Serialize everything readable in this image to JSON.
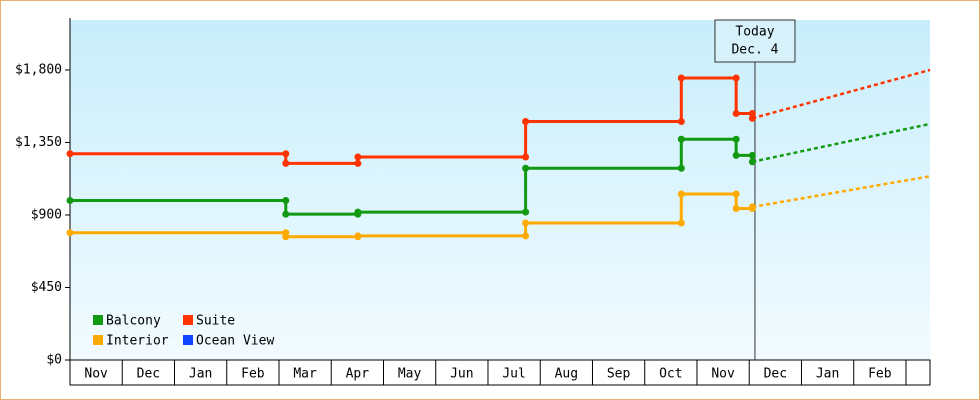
{
  "chart_data": {
    "type": "step-line",
    "categories": [
      "Nov",
      "Dec",
      "Jan",
      "Feb",
      "Mar",
      "Apr",
      "May",
      "Jun",
      "Jul",
      "Aug",
      "Sep",
      "Oct",
      "Nov",
      "Dec",
      "Jan",
      "Feb"
    ],
    "xlim": [
      0,
      16.46
    ],
    "ylim": [
      0,
      2110
    ],
    "yticks": [
      {
        "value": 0,
        "label": "$0"
      },
      {
        "value": 450,
        "label": "$450"
      },
      {
        "value": 900,
        "label": "$900"
      },
      {
        "value": 1350,
        "label": "$1,350"
      },
      {
        "value": 1800,
        "label": "$1,800"
      }
    ],
    "legend": "lower left",
    "annotation": {
      "lines": [
        "Today",
        "Dec. 4"
      ],
      "x": 13.11
    },
    "series": [
      {
        "name": "Balcony",
        "color": "#119911",
        "x": [
          0,
          4.13,
          4.13,
          5.51,
          5.51,
          8.72,
          8.72,
          11.7,
          11.7,
          12.75,
          12.75,
          13.06,
          13.06
        ],
        "values": [
          990,
          990,
          905,
          905,
          918,
          918,
          1190,
          1190,
          1370,
          1370,
          1270,
          1270,
          1230
        ],
        "forecast": {
          "x": [
            13.06,
            16.46
          ],
          "values": [
            1230,
            1465
          ]
        }
      },
      {
        "name": "Suite",
        "color": "#ff3300",
        "x": [
          0,
          4.13,
          4.13,
          5.51,
          5.51,
          8.72,
          8.72,
          11.7,
          11.7,
          12.75,
          12.75,
          13.06,
          13.06
        ],
        "values": [
          1280,
          1280,
          1220,
          1220,
          1260,
          1260,
          1480,
          1480,
          1750,
          1750,
          1530,
          1530,
          1500
        ],
        "forecast": {
          "x": [
            13.06,
            16.46
          ],
          "values": [
            1500,
            1800
          ]
        }
      },
      {
        "name": "Interior",
        "color": "#ffaa00",
        "x": [
          0,
          4.13,
          4.13,
          5.51,
          5.51,
          8.72,
          8.72,
          11.7,
          11.7,
          12.75,
          12.75,
          13.06,
          13.06
        ],
        "values": [
          790,
          790,
          765,
          765,
          770,
          770,
          850,
          850,
          1030,
          1030,
          940,
          940,
          950
        ],
        "forecast": {
          "x": [
            13.06,
            16.46
          ],
          "values": [
            950,
            1140
          ]
        }
      },
      {
        "name": "Ocean View",
        "color": "#1144ff",
        "x": [],
        "values": []
      }
    ]
  }
}
